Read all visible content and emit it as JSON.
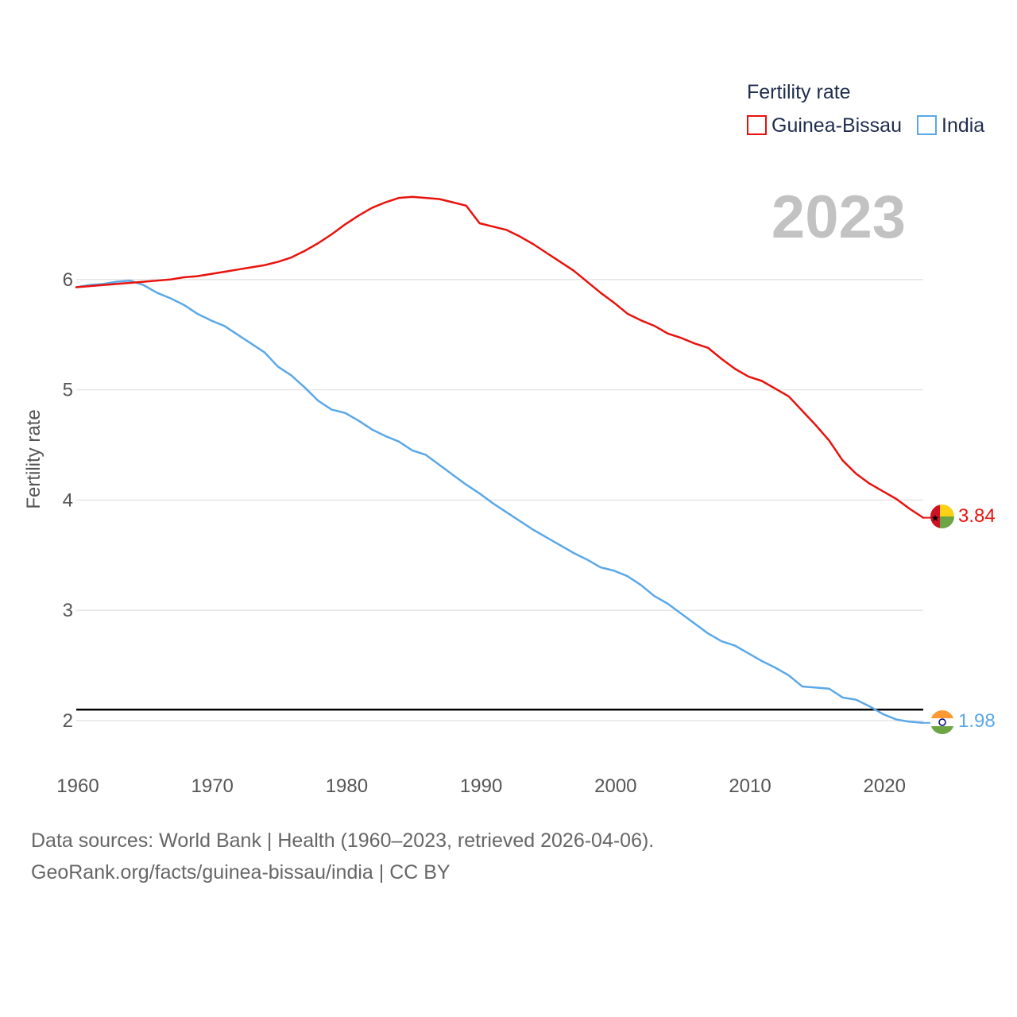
{
  "chart_data": {
    "type": "line",
    "legend_title": "Fertility rate",
    "ylabel": "Fertility rate",
    "xlabel": "",
    "current_year": "2023",
    "xlim": [
      1960,
      2023
    ],
    "ylim": [
      1.6,
      6.9
    ],
    "x_ticks": [
      "1960",
      "1970",
      "1980",
      "1990",
      "2000",
      "2010",
      "2020"
    ],
    "y_ticks": [
      "2",
      "3",
      "4",
      "5",
      "6"
    ],
    "reference_line": 2.1,
    "x": [
      1960,
      1961,
      1962,
      1963,
      1964,
      1965,
      1966,
      1967,
      1968,
      1969,
      1970,
      1971,
      1972,
      1973,
      1974,
      1975,
      1976,
      1977,
      1978,
      1979,
      1980,
      1981,
      1982,
      1983,
      1984,
      1985,
      1986,
      1987,
      1988,
      1989,
      1990,
      1991,
      1992,
      1993,
      1994,
      1995,
      1996,
      1997,
      1998,
      1999,
      2000,
      2001,
      2002,
      2003,
      2004,
      2005,
      2006,
      2007,
      2008,
      2009,
      2010,
      2011,
      2012,
      2013,
      2014,
      2015,
      2016,
      2017,
      2018,
      2019,
      2020,
      2021,
      2022,
      2023
    ],
    "series": [
      {
        "name": "Guinea-Bissau",
        "color": "#e8120c",
        "end_label": "3.84",
        "flag": "guinea-bissau-flag",
        "values": [
          5.93,
          5.94,
          5.95,
          5.96,
          5.97,
          5.98,
          5.99,
          6.0,
          6.02,
          6.03,
          6.05,
          6.07,
          6.09,
          6.11,
          6.13,
          6.16,
          6.2,
          6.26,
          6.33,
          6.41,
          6.5,
          6.58,
          6.65,
          6.7,
          6.74,
          6.75,
          6.74,
          6.73,
          6.7,
          6.67,
          6.51,
          6.48,
          6.45,
          6.39,
          6.32,
          6.24,
          6.16,
          6.08,
          5.98,
          5.88,
          5.79,
          5.69,
          5.63,
          5.58,
          5.51,
          5.47,
          5.42,
          5.38,
          5.28,
          5.19,
          5.12,
          5.08,
          5.01,
          4.94,
          4.81,
          4.68,
          4.54,
          4.36,
          4.24,
          4.15,
          4.08,
          4.01,
          3.92,
          3.84
        ]
      },
      {
        "name": "India",
        "color": "#5ba8e8",
        "end_label": "1.98",
        "flag": "india-flag",
        "values": [
          5.93,
          5.95,
          5.96,
          5.98,
          5.99,
          5.95,
          5.88,
          5.83,
          5.77,
          5.69,
          5.63,
          5.58,
          5.5,
          5.42,
          5.34,
          5.21,
          5.13,
          5.02,
          4.9,
          4.82,
          4.79,
          4.72,
          4.64,
          4.58,
          4.53,
          4.45,
          4.41,
          4.32,
          4.23,
          4.14,
          4.06,
          3.97,
          3.89,
          3.81,
          3.73,
          3.66,
          3.59,
          3.52,
          3.46,
          3.39,
          3.36,
          3.31,
          3.23,
          3.13,
          3.06,
          2.97,
          2.88,
          2.79,
          2.72,
          2.68,
          2.61,
          2.54,
          2.48,
          2.41,
          2.31,
          2.3,
          2.29,
          2.21,
          2.19,
          2.13,
          2.06,
          2.01,
          1.99,
          1.98
        ]
      }
    ]
  },
  "footer": {
    "line1": "Data sources: World Bank | Health (1960–2023, retrieved 2026-04-06).",
    "line2": "GeoRank.org/facts/guinea-bissau/india | CC BY"
  }
}
